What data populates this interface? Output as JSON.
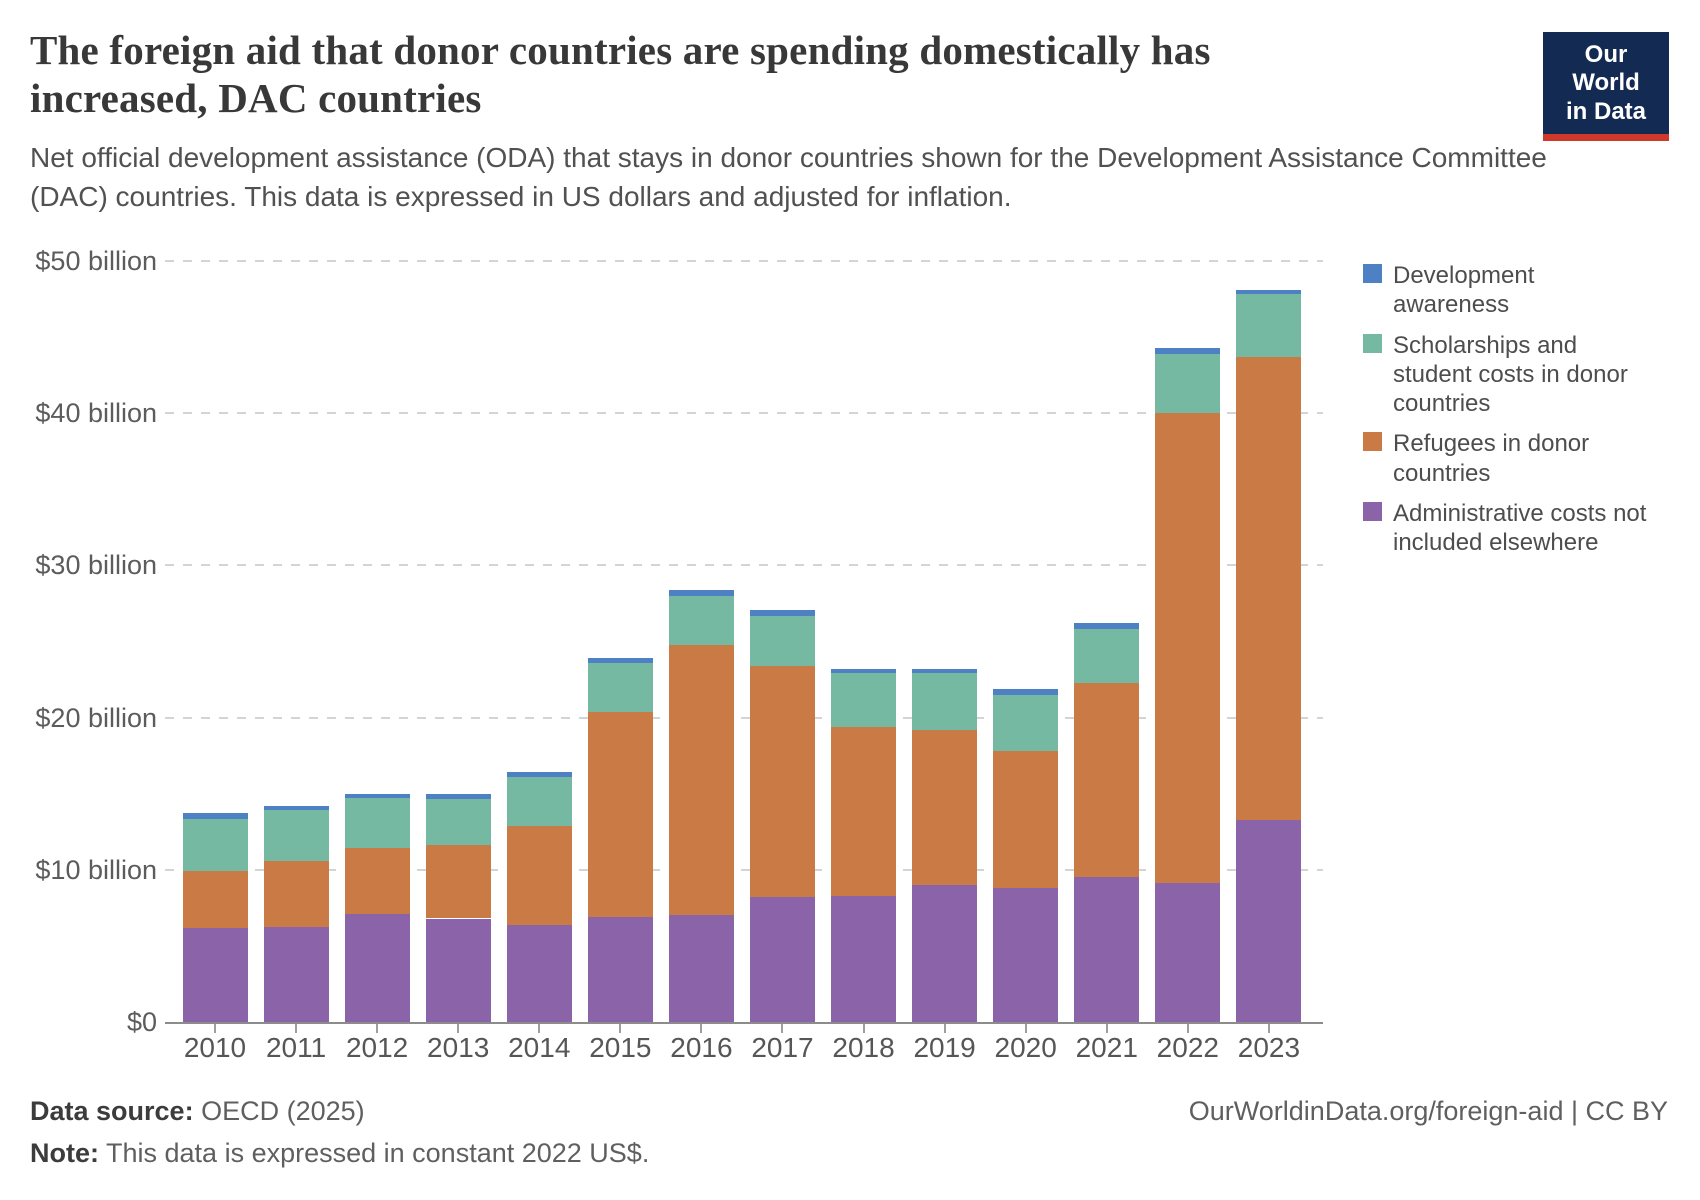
{
  "header": {
    "title": "The foreign aid that donor countries are spending domestically has increased, DAC countries",
    "subtitle": "Net official development assistance (ODA) that stays in donor countries shown for the Development Assistance Committee (DAC) countries. This data is expressed in US dollars and adjusted for inflation."
  },
  "logo": {
    "line1": "Our World",
    "line2": "in Data",
    "bg": "#132A52",
    "accent": "#CE392B"
  },
  "legend": {
    "items": [
      {
        "label": "Development awareness",
        "color": "#4D81C3"
      },
      {
        "label": "Scholarships and student costs in donor countries",
        "color": "#76B9A2"
      },
      {
        "label": "Refugees in donor countries",
        "color": "#C97A45"
      },
      {
        "label": "Administrative costs not included elsewhere",
        "color": "#8A63A8"
      }
    ]
  },
  "chart_data": {
    "type": "bar",
    "stacked": true,
    "title": "The foreign aid that donor countries are spending domestically has increased, DAC countries",
    "unit": "constant 2022 US$ billion",
    "xlabel": "",
    "ylabel": "",
    "ylim": [
      0,
      50
    ],
    "grid": "horizontal dashed",
    "legend_position": "right",
    "categories": [
      "2010",
      "2011",
      "2012",
      "2013",
      "2014",
      "2015",
      "2016",
      "2017",
      "2018",
      "2019",
      "2020",
      "2021",
      "2022",
      "2023"
    ],
    "series": [
      {
        "name": "Administrative costs not included elsewhere",
        "color": "#8A63A8",
        "values": [
          6.2,
          6.25,
          7.1,
          6.8,
          6.4,
          6.9,
          7.0,
          8.2,
          8.3,
          9.0,
          8.8,
          9.55,
          9.1,
          13.3
        ]
      },
      {
        "name": "Refugees in donor countries",
        "color": "#C97A45",
        "values": [
          3.7,
          4.35,
          4.35,
          4.8,
          6.5,
          13.5,
          17.8,
          15.2,
          11.1,
          10.2,
          9.0,
          12.75,
          30.9,
          30.4
        ]
      },
      {
        "name": "Scholarships and student costs in donor countries",
        "color": "#76B9A2",
        "values": [
          3.45,
          3.3,
          3.25,
          3.05,
          3.2,
          3.2,
          3.2,
          3.3,
          3.5,
          3.7,
          3.7,
          3.5,
          3.9,
          4.1
        ]
      },
      {
        "name": "Development awareness",
        "color": "#4D81C3",
        "values": [
          0.4,
          0.3,
          0.3,
          0.3,
          0.3,
          0.3,
          0.4,
          0.4,
          0.3,
          0.3,
          0.4,
          0.4,
          0.4,
          0.3
        ]
      }
    ],
    "yticks": [
      {
        "value": 0,
        "label": "$0"
      },
      {
        "value": 10,
        "label": "$10 billion"
      },
      {
        "value": 20,
        "label": "$20 billion"
      },
      {
        "value": 30,
        "label": "$30 billion"
      },
      {
        "value": 40,
        "label": "$40 billion"
      },
      {
        "value": 50,
        "label": "$50 billion"
      }
    ]
  },
  "footer": {
    "data_source_label": "Data source:",
    "data_source_value": " OECD (2025)",
    "note_label": "Note:",
    "note_value": " This data is expressed in constant 2022 US$.",
    "right": "OurWorldinData.org/foreign-aid | CC BY"
  }
}
